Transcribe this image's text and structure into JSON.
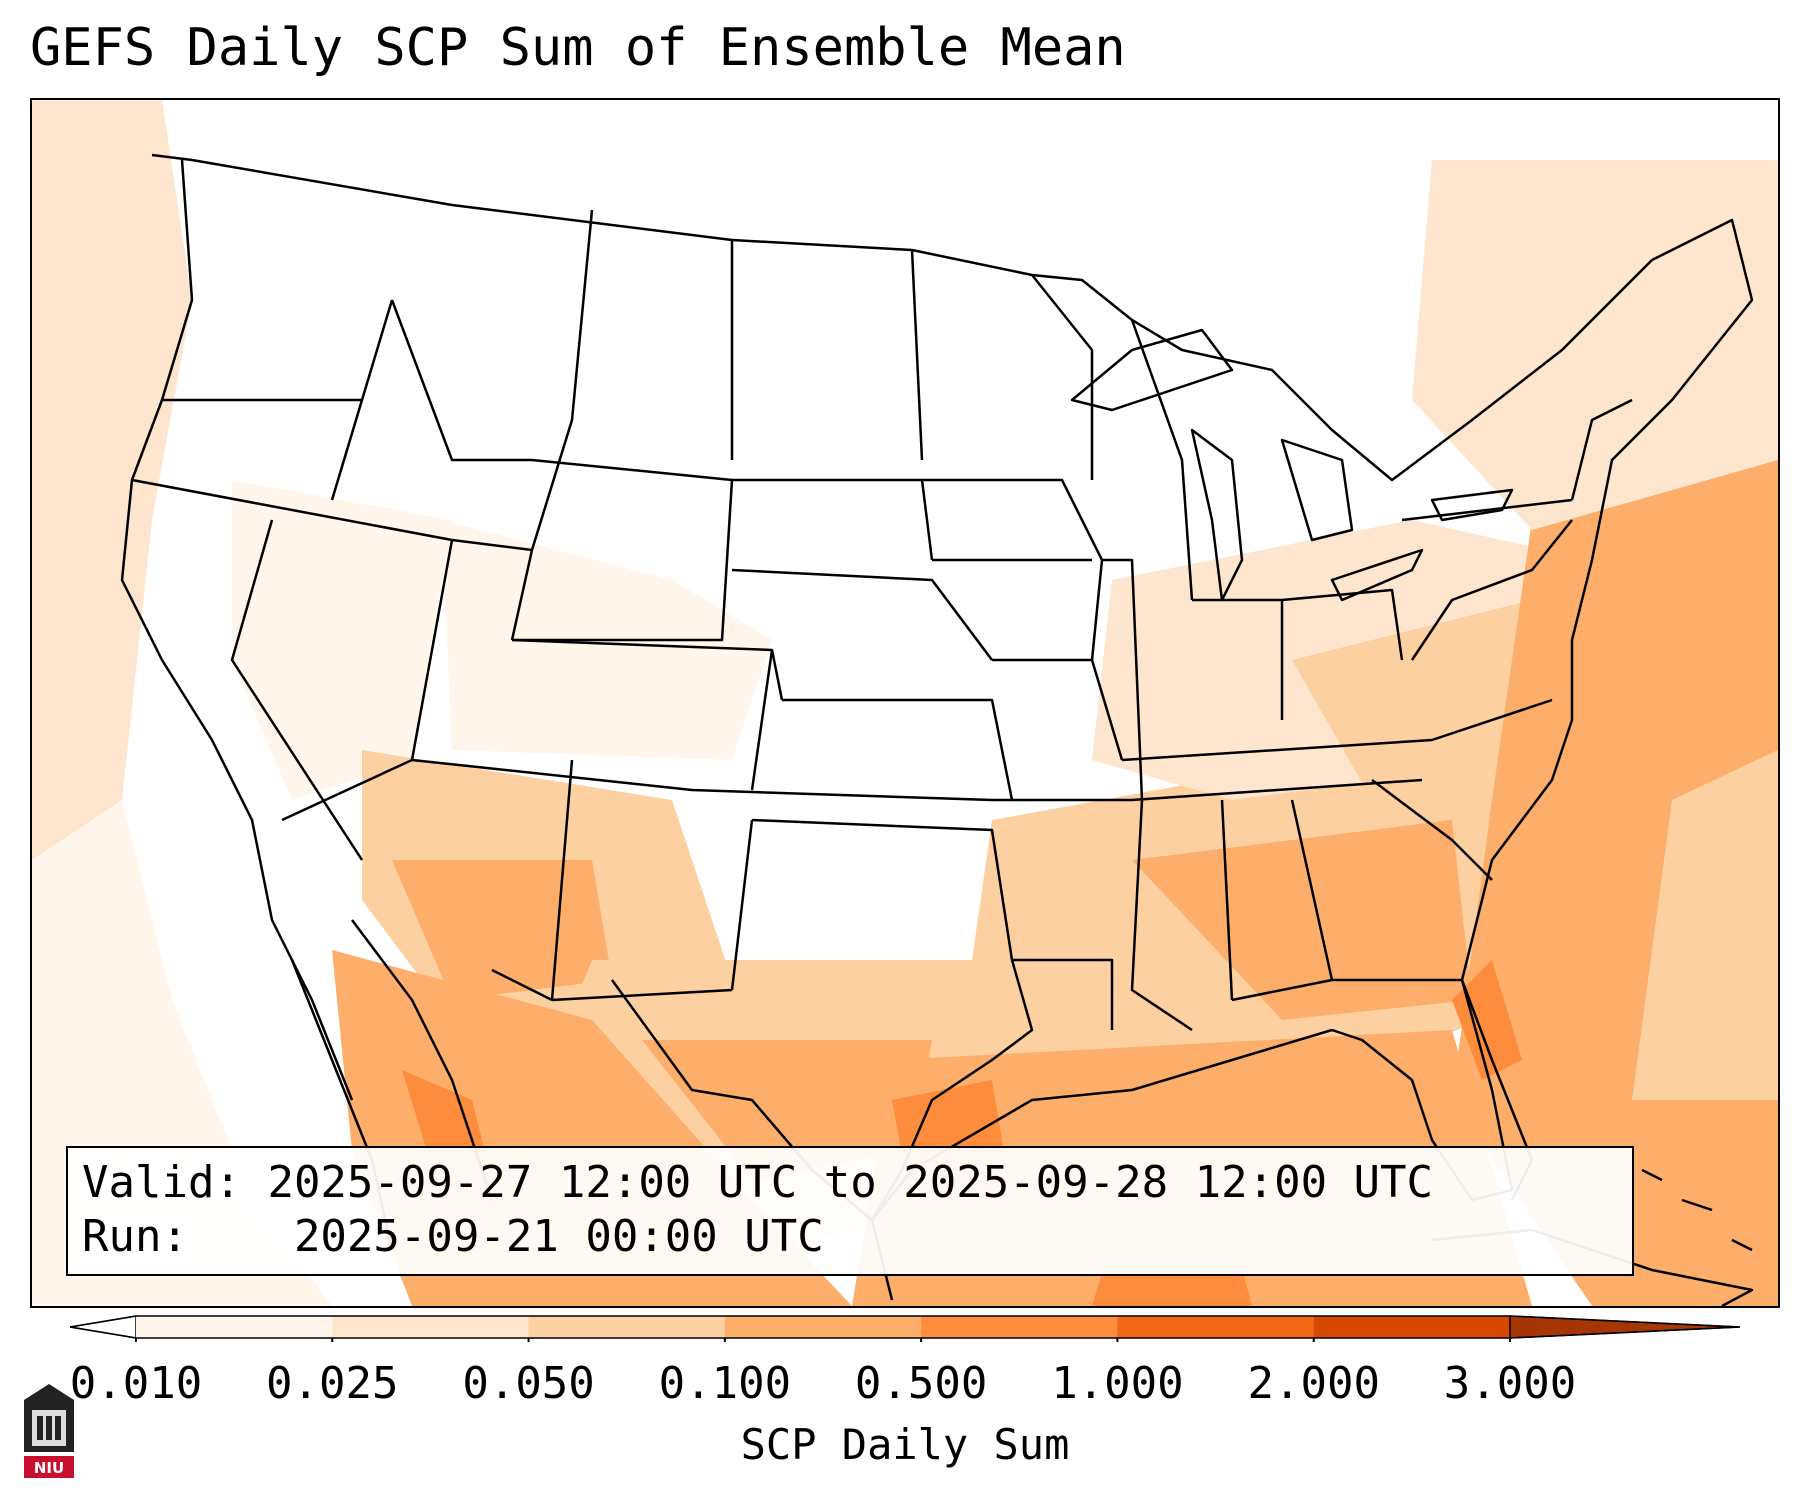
{
  "title": "GEFS Daily SCP Sum of Ensemble Mean",
  "info": {
    "valid_label": "Valid:",
    "valid_text": "2025-09-27 12:00 UTC to 2025-09-28 12:00 UTC",
    "run_label": "Run:",
    "run_text": "2025-09-21 00:00 UTC"
  },
  "colorbar": {
    "label": "SCP Daily Sum",
    "ticks": [
      "0.010",
      "0.025",
      "0.050",
      "0.100",
      "0.500",
      "1.000",
      "2.000",
      "3.000"
    ],
    "colors": [
      "#fff5eb",
      "#fee6ce",
      "#fdd0a2",
      "#fdae6b",
      "#fd8d3c",
      "#f16913",
      "#d94801"
    ],
    "extend_colors": [
      "#ffffff",
      "#a63603"
    ]
  },
  "map": {
    "colors": {
      "none": "#ffffff",
      "very_light": "#fff5eb",
      "light": "#fee6ce",
      "medium": "#fdd0a2",
      "orange": "#fdae6b",
      "dark": "#fd8d3c"
    }
  },
  "logo": {
    "text": "NIU",
    "accent": "#c8102e"
  }
}
